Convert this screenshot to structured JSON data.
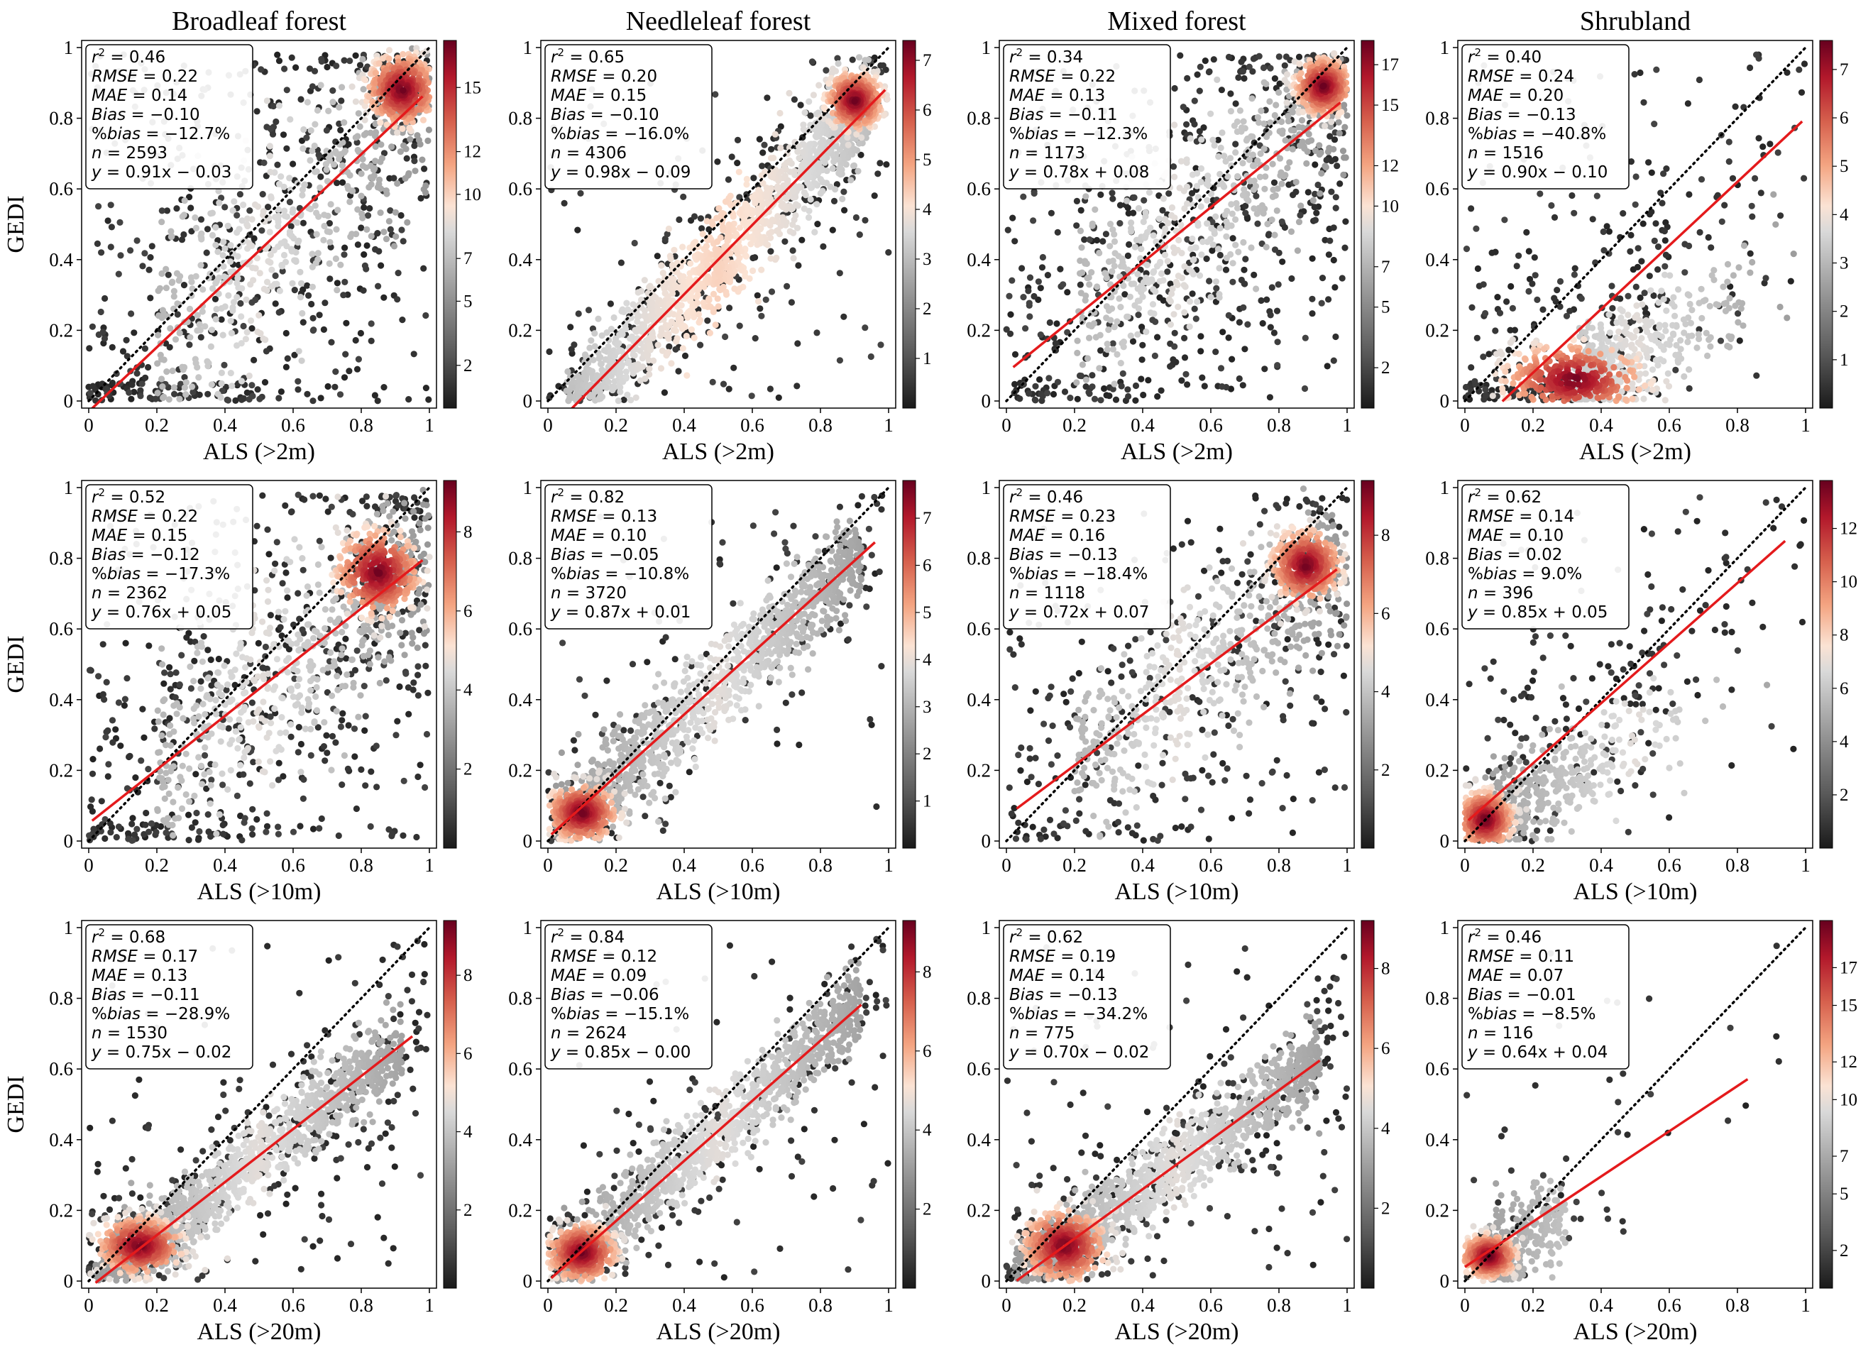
{
  "chart_data": {
    "type": "scatter",
    "layout": "3 rows x 4 columns",
    "column_titles": [
      "Broadleaf forest",
      "Needleleaf forest",
      "Mixed forest",
      "Shrubland"
    ],
    "y_axis_label": "GEDI",
    "x_axis_labels": [
      "ALS (>2m)",
      "ALS (>10m)",
      "ALS (>20m)"
    ],
    "xlim": [
      0,
      1
    ],
    "ylim": [
      0,
      1
    ],
    "ticks": [
      0,
      0.2,
      0.4,
      0.6,
      0.8,
      1
    ],
    "tick_labels": [
      "0",
      "0.2",
      "0.4",
      "0.6",
      "0.8",
      "1"
    ],
    "reference_line": "1:1 dotted black",
    "regression_line_color": "#e41a1c",
    "colormap": [
      "#1a1a1a",
      "#5a5a5a",
      "#9a9a9a",
      "#d9d9d9",
      "#fbe3d4",
      "#f4a582",
      "#d6604d",
      "#b2182b",
      "#67001f"
    ],
    "panels": [
      {
        "row": 0,
        "col": 0,
        "r2": "0.46",
        "rmse": "0.22",
        "mae": "0.14",
        "bias": "−0.10",
        "pbias": "−12.7%",
        "n": "2593",
        "slope": 0.91,
        "intercept": -0.03,
        "eq": "0.91x − 0.03",
        "reg_range": [
          0,
          0.98
        ],
        "cbar_ticks": [
          "2",
          "5",
          "7",
          "10",
          "12",
          "15"
        ],
        "cbar_max": 17.2,
        "pattern": "cluster",
        "cx": 0.92,
        "cy": 0.88,
        "sx": 0.05,
        "sy": 0.05,
        "spread": 0.22,
        "noise": "heavy"
      },
      {
        "row": 0,
        "col": 1,
        "r2": "0.65",
        "rmse": "0.20",
        "mae": "0.15",
        "bias": "−0.10",
        "pbias": "−16.0%",
        "n": "4306",
        "slope": 0.98,
        "intercept": -0.09,
        "eq": "0.98x − 0.09",
        "reg_range": [
          0.07,
          0.99
        ],
        "cbar_ticks": [
          "1",
          "2",
          "3",
          "4",
          "5",
          "6",
          "7"
        ],
        "cbar_max": 7.4,
        "pattern": "band",
        "cx": 0.9,
        "cy": 0.85,
        "sx": 0.04,
        "sy": 0.04,
        "spread": 0.1,
        "noise": "medium"
      },
      {
        "row": 0,
        "col": 2,
        "r2": "0.34",
        "rmse": "0.22",
        "mae": "0.13",
        "bias": "−0.11",
        "pbias": "−12.3%",
        "n": "1173",
        "slope": 0.78,
        "intercept": 0.08,
        "eq": "0.78x + 0.08",
        "reg_range": [
          0.02,
          0.98
        ],
        "cbar_ticks": [
          "2",
          "5",
          "7",
          "10",
          "12",
          "15",
          "17"
        ],
        "cbar_max": 18.2,
        "pattern": "cluster",
        "cx": 0.93,
        "cy": 0.89,
        "sx": 0.04,
        "sy": 0.04,
        "spread": 0.18,
        "noise": "heavy"
      },
      {
        "row": 0,
        "col": 3,
        "r2": "0.40",
        "rmse": "0.24",
        "mae": "0.20",
        "bias": "−0.13",
        "pbias": "−40.8%",
        "n": "1516",
        "slope": 0.9,
        "intercept": -0.1,
        "eq": "0.90x − 0.10",
        "reg_range": [
          0.11,
          0.99
        ],
        "cbar_ticks": [
          "1",
          "2",
          "3",
          "4",
          "5",
          "6",
          "7"
        ],
        "cbar_max": 7.6,
        "pattern": "lowcluster",
        "cx": 0.32,
        "cy": 0.06,
        "sx": 0.1,
        "sy": 0.05,
        "spread": 0.15,
        "noise": "medium"
      },
      {
        "row": 1,
        "col": 0,
        "r2": "0.52",
        "rmse": "0.22",
        "mae": "0.15",
        "bias": "−0.12",
        "pbias": "−17.3%",
        "n": "2362",
        "slope": 0.76,
        "intercept": 0.05,
        "eq": "0.76x + 0.05",
        "reg_range": [
          0.01,
          0.98
        ],
        "cbar_ticks": [
          "2",
          "4",
          "6",
          "8"
        ],
        "cbar_max": 9.3,
        "pattern": "cluster",
        "cx": 0.85,
        "cy": 0.76,
        "sx": 0.06,
        "sy": 0.06,
        "spread": 0.2,
        "noise": "heavy"
      },
      {
        "row": 1,
        "col": 1,
        "r2": "0.82",
        "rmse": "0.13",
        "mae": "0.10",
        "bias": "−0.05",
        "pbias": "−10.8%",
        "n": "3720",
        "slope": 0.87,
        "intercept": 0.01,
        "eq": "0.87x + 0.01",
        "reg_range": [
          0.01,
          0.96
        ],
        "cbar_ticks": [
          "1",
          "2",
          "3",
          "4",
          "5",
          "6",
          "7"
        ],
        "cbar_max": 7.8,
        "pattern": "band2",
        "cx": 0.1,
        "cy": 0.08,
        "sx": 0.05,
        "sy": 0.04,
        "spread": 0.09,
        "noise": "light"
      },
      {
        "row": 1,
        "col": 2,
        "r2": "0.46",
        "rmse": "0.23",
        "mae": "0.16",
        "bias": "−0.13",
        "pbias": "−18.4%",
        "n": "1118",
        "slope": 0.72,
        "intercept": 0.07,
        "eq": "0.72x + 0.07",
        "reg_range": [
          0.03,
          0.97
        ],
        "cbar_ticks": [
          "2",
          "4",
          "6",
          "8"
        ],
        "cbar_max": 9.4,
        "pattern": "cluster",
        "cx": 0.88,
        "cy": 0.78,
        "sx": 0.05,
        "sy": 0.05,
        "spread": 0.16,
        "noise": "medium"
      },
      {
        "row": 1,
        "col": 3,
        "r2": "0.62",
        "rmse": "0.14",
        "mae": "0.10",
        "bias": "0.02",
        "pbias": "9.0%",
        "n": "396",
        "slope": 0.85,
        "intercept": 0.05,
        "eq": "0.85x + 0.05",
        "reg_range": [
          0.01,
          0.94
        ],
        "cbar_ticks": [
          "2",
          "4",
          "6",
          "8",
          "10",
          "12"
        ],
        "cbar_max": 13.8,
        "pattern": "lowcluster",
        "cx": 0.06,
        "cy": 0.06,
        "sx": 0.04,
        "sy": 0.04,
        "spread": 0.1,
        "noise": "light"
      },
      {
        "row": 2,
        "col": 0,
        "r2": "0.68",
        "rmse": "0.17",
        "mae": "0.13",
        "bias": "−0.11",
        "pbias": "−28.9%",
        "n": "1530",
        "slope": 0.75,
        "intercept": -0.02,
        "eq": "0.75x − 0.02",
        "reg_range": [
          0.02,
          0.95
        ],
        "cbar_ticks": [
          "2",
          "4",
          "6",
          "8"
        ],
        "cbar_max": 9.4,
        "pattern": "band2",
        "cx": 0.15,
        "cy": 0.1,
        "sx": 0.06,
        "sy": 0.04,
        "spread": 0.08,
        "noise": "medium"
      },
      {
        "row": 2,
        "col": 1,
        "r2": "0.84",
        "rmse": "0.12",
        "mae": "0.09",
        "bias": "−0.06",
        "pbias": "−15.1%",
        "n": "2624",
        "slope": 0.85,
        "intercept": -0.0,
        "eq": "0.85x − 0.00",
        "reg_range": [
          0.01,
          0.92
        ],
        "cbar_ticks": [
          "2",
          "4",
          "6",
          "8"
        ],
        "cbar_max": 9.3,
        "pattern": "band2",
        "cx": 0.1,
        "cy": 0.08,
        "sx": 0.05,
        "sy": 0.04,
        "spread": 0.08,
        "noise": "light"
      },
      {
        "row": 2,
        "col": 2,
        "r2": "0.62",
        "rmse": "0.19",
        "mae": "0.14",
        "bias": "−0.13",
        "pbias": "−34.2%",
        "n": "775",
        "slope": 0.7,
        "intercept": -0.02,
        "eq": "0.70x − 0.02",
        "reg_range": [
          0.03,
          0.92
        ],
        "cbar_ticks": [
          "2",
          "4",
          "6",
          "8"
        ],
        "cbar_max": 9.2,
        "pattern": "band2",
        "cx": 0.17,
        "cy": 0.1,
        "sx": 0.06,
        "sy": 0.05,
        "spread": 0.08,
        "noise": "medium"
      },
      {
        "row": 2,
        "col": 3,
        "r2": "0.46",
        "rmse": "0.11",
        "mae": "0.07",
        "bias": "−0.01",
        "pbias": "−8.5%",
        "n": "116",
        "slope": 0.64,
        "intercept": 0.04,
        "eq": "0.64x + 0.04",
        "reg_range": [
          0.0,
          0.83
        ],
        "cbar_ticks": [
          "2",
          "5",
          "7",
          "10",
          "12",
          "15",
          "17"
        ],
        "cbar_max": 19.5,
        "pattern": "lowcluster",
        "cx": 0.07,
        "cy": 0.07,
        "sx": 0.04,
        "sy": 0.03,
        "spread": 0.06,
        "noise": "sparse"
      }
    ]
  }
}
